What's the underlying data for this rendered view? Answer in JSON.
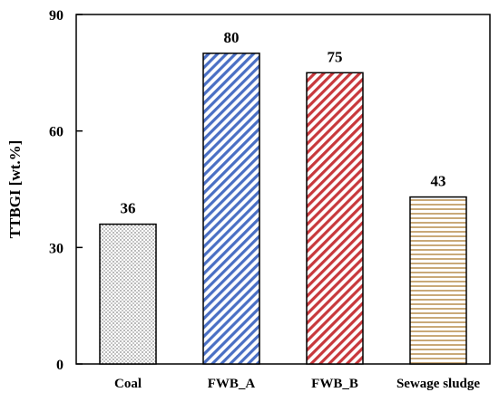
{
  "chart_data": {
    "type": "bar",
    "title": "",
    "xlabel": "",
    "ylabel": "TTBGI [wt.%]",
    "ylim": [
      0,
      90
    ],
    "yticks": [
      0,
      30,
      60,
      90
    ],
    "grid": false,
    "categories": [
      "Coal",
      "FWB_A",
      "FWB_B",
      "Sewage sludge"
    ],
    "values": [
      36,
      80,
      75,
      43
    ],
    "data_labels": [
      "36",
      "80",
      "75",
      "43"
    ],
    "bar_styles": [
      {
        "pattern": "dots",
        "color": "#8a8a8a"
      },
      {
        "pattern": "diagonal-stripes",
        "color": "#4a6fc4"
      },
      {
        "pattern": "diagonal-stripes",
        "color": "#c8383c"
      },
      {
        "pattern": "horizontal-stripes",
        "color": "#c9a978"
      }
    ]
  }
}
